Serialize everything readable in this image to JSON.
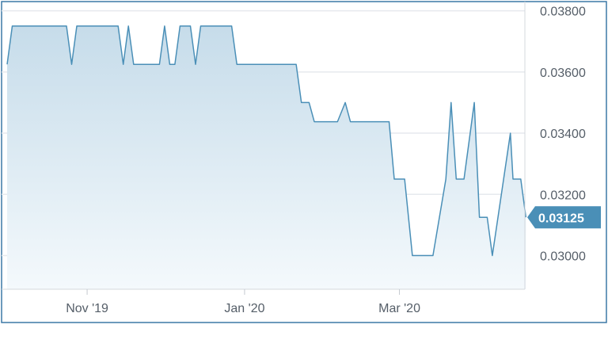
{
  "chart_data": {
    "type": "area",
    "title": "",
    "xlabel": "",
    "ylabel": "",
    "x_range": [
      "2019-10-01",
      "2020-04-14"
    ],
    "ylim": [
      0.0289,
      0.0383
    ],
    "grid": true,
    "y_ticks": [
      {
        "value": 0.038,
        "label": "0.03800"
      },
      {
        "value": 0.036,
        "label": "0.03600"
      },
      {
        "value": 0.034,
        "label": "0.03400"
      },
      {
        "value": 0.032,
        "label": "0.03200"
      },
      {
        "value": 0.03,
        "label": "0.03000"
      }
    ],
    "x_ticks": [
      {
        "date": "2019-11-01",
        "label": "Nov '19"
      },
      {
        "date": "2020-01-01",
        "label": "Jan '20"
      },
      {
        "date": "2020-03-01",
        "label": "Mar '20"
      }
    ],
    "last_value_label": "0.03125",
    "colors": {
      "line": "#4a8fb7",
      "area_top": "#c6dcea",
      "area_bottom": "#f4f9fc",
      "grid": "#e6e9ee",
      "axis": "#3b79a6",
      "badge": "#4a8fb7"
    },
    "series": [
      {
        "points": [
          [
            "2019-10-01",
            0.03625
          ],
          [
            "2019-10-03",
            0.0375
          ],
          [
            "2019-10-24",
            0.0375
          ],
          [
            "2019-10-26",
            0.03625
          ],
          [
            "2019-10-28",
            0.0375
          ],
          [
            "2019-11-13",
            0.0375
          ],
          [
            "2019-11-15",
            0.03625
          ],
          [
            "2019-11-17",
            0.0375
          ],
          [
            "2019-11-19",
            0.03625
          ],
          [
            "2019-11-29",
            0.03625
          ],
          [
            "2019-12-01",
            0.0375
          ],
          [
            "2019-12-03",
            0.03625
          ],
          [
            "2019-12-05",
            0.03625
          ],
          [
            "2019-12-07",
            0.0375
          ],
          [
            "2019-12-11",
            0.0375
          ],
          [
            "2019-12-13",
            0.03625
          ],
          [
            "2019-12-15",
            0.0375
          ],
          [
            "2019-12-27",
            0.0375
          ],
          [
            "2019-12-29",
            0.03625
          ],
          [
            "2020-01-21",
            0.03625
          ],
          [
            "2020-01-23",
            0.035
          ],
          [
            "2020-01-26",
            0.035
          ],
          [
            "2020-01-28",
            0.034375
          ],
          [
            "2020-02-06",
            0.034375
          ],
          [
            "2020-02-09",
            0.035
          ],
          [
            "2020-02-11",
            0.034375
          ],
          [
            "2020-02-26",
            0.034375
          ],
          [
            "2020-02-28",
            0.0325
          ],
          [
            "2020-03-03",
            0.0325
          ],
          [
            "2020-03-06",
            0.03
          ],
          [
            "2020-03-14",
            0.03
          ],
          [
            "2020-03-19",
            0.0325
          ],
          [
            "2020-03-21",
            0.035
          ],
          [
            "2020-03-23",
            0.0325
          ],
          [
            "2020-03-26",
            0.0325
          ],
          [
            "2020-03-30",
            0.035
          ],
          [
            "2020-04-01",
            0.03125
          ],
          [
            "2020-04-04",
            0.03125
          ],
          [
            "2020-04-06",
            0.03
          ],
          [
            "2020-04-13",
            0.034
          ],
          [
            "2020-04-14",
            0.0325
          ],
          [
            "2020-04-17",
            0.0325
          ],
          [
            "2020-04-19",
            0.03125
          ]
        ]
      }
    ]
  }
}
